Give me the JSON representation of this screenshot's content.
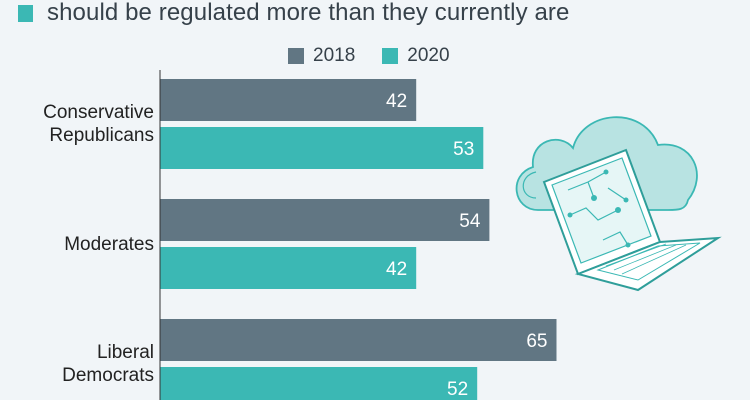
{
  "subtitle": "should be regulated more than they currently are",
  "colors": {
    "s2018": "#617683",
    "s2020": "#3bb8b4",
    "bg": "#f1f5f8"
  },
  "chart_data": {
    "type": "bar",
    "orientation": "horizontal",
    "title": "should be regulated more than they currently are",
    "categories": [
      "Conservative Republicans",
      "Moderates",
      "Liberal Democrats"
    ],
    "category_lines": [
      [
        "Conservative",
        "Republicans"
      ],
      [
        "Moderates"
      ],
      [
        "Liberal",
        "Democrats"
      ]
    ],
    "series": [
      {
        "name": "2018",
        "values": [
          42,
          54,
          65
        ]
      },
      {
        "name": "2020",
        "values": [
          53,
          42,
          52
        ]
      }
    ],
    "xlim": [
      0,
      100
    ],
    "xlabel": "",
    "ylabel": "",
    "legend": "top",
    "grid": false
  }
}
